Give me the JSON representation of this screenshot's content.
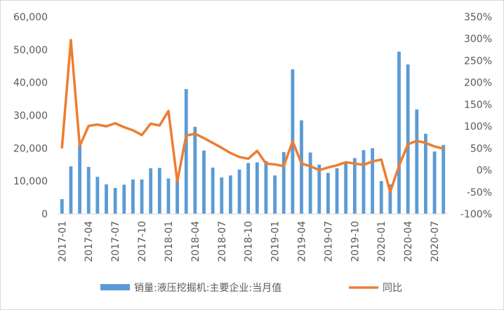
{
  "chart_data": {
    "type": "bar+line",
    "categories": [
      "2017-01",
      "2017-02",
      "2017-03",
      "2017-04",
      "2017-05",
      "2017-06",
      "2017-07",
      "2017-08",
      "2017-09",
      "2017-10",
      "2017-11",
      "2017-12",
      "2018-01",
      "2018-02",
      "2018-03",
      "2018-04",
      "2018-05",
      "2018-06",
      "2018-07",
      "2018-08",
      "2018-09",
      "2018-10",
      "2018-11",
      "2018-12",
      "2019-01",
      "2019-02",
      "2019-03",
      "2019-04",
      "2019-05",
      "2019-06",
      "2019-07",
      "2019-08",
      "2019-09",
      "2019-10",
      "2019-11",
      "2019-12",
      "2020-01",
      "2020-02",
      "2020-03",
      "2020-04",
      "2020-05",
      "2020-06",
      "2020-07",
      "2020-08"
    ],
    "x_tick_labels": [
      "2017-01",
      "2017-04",
      "2017-07",
      "2017-10",
      "2018-01",
      "2018-04",
      "2018-07",
      "2018-10",
      "2019-01",
      "2019-04",
      "2019-07",
      "2019-10",
      "2020-01",
      "2020-04",
      "2020-07"
    ],
    "series": [
      {
        "name": "销量:液压挖掘机:主要企业:当月值",
        "kind": "bar",
        "axis": "left",
        "color": "#5B9BD5",
        "values": [
          4500,
          14500,
          21000,
          14300,
          11300,
          9000,
          7900,
          8900,
          10500,
          10500,
          13900,
          14000,
          10800,
          10300,
          38000,
          26500,
          19300,
          14100,
          11100,
          11700,
          13500,
          15500,
          15700,
          16100,
          11700,
          18800,
          44000,
          28500,
          18700,
          15000,
          12500,
          13900,
          15500,
          17000,
          19400,
          20000,
          10000,
          9000,
          49400,
          45500,
          31800,
          24400,
          19000,
          21000
        ]
      },
      {
        "name": "同比",
        "kind": "line",
        "axis": "right",
        "color": "#ED7D31",
        "values": [
          52,
          297,
          55,
          101,
          104,
          100,
          107,
          98,
          91,
          80,
          106,
          102,
          135,
          -26,
          79,
          83,
          73,
          62,
          51,
          39,
          30,
          26,
          44,
          15,
          13,
          9,
          66,
          15,
          9,
          0,
          6,
          11,
          18,
          15,
          12,
          20,
          24,
          -50,
          10,
          59,
          67,
          62,
          54,
          49
        ]
      }
    ],
    "y_left": {
      "min": 0,
      "max": 60000,
      "step": 10000,
      "tick_labels": [
        "0",
        "10,000",
        "20,000",
        "30,000",
        "40,000",
        "50,000",
        "60,000"
      ]
    },
    "y_right": {
      "min": -100,
      "max": 350,
      "step": 50,
      "tick_labels": [
        "-100%",
        "-50%",
        "0%",
        "50%",
        "100%",
        "150%",
        "200%",
        "250%",
        "300%",
        "350%"
      ]
    },
    "legend_position": "bottom",
    "grid": false
  }
}
